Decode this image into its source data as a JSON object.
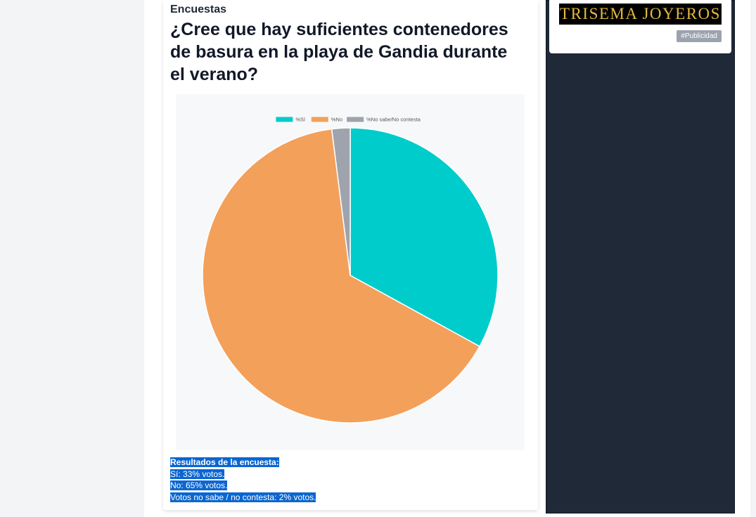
{
  "article": {
    "category": "Encuestas",
    "title": "¿Cree que hay suficientes contenedores de basura en la playa de Gandia durante el verano?"
  },
  "chart_data": {
    "type": "pie",
    "categories": [
      "%Sí",
      "%No",
      "%No sabe/No contesta"
    ],
    "values": [
      33,
      65,
      2
    ],
    "colors": [
      "#00cccc",
      "#f3a05b",
      "#9ea3ad"
    ],
    "legend": "top"
  },
  "results": {
    "heading": "Resultados de la encuesta:",
    "lines": [
      "Sí: 33% votos.",
      "No: 65% votos.",
      "Votos no sabe / no contesta: 2% votos."
    ]
  },
  "ad": {
    "logo_text": "TRISEMA JOYEROS",
    "badge": "#Publicidad"
  }
}
